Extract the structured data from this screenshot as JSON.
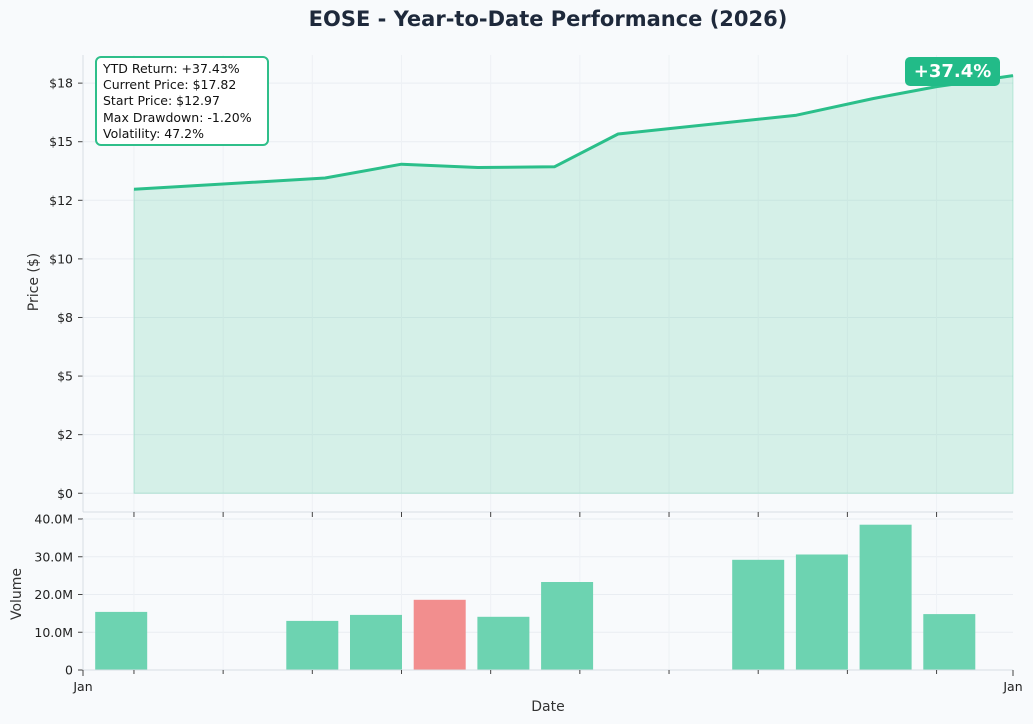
{
  "chart_data": [
    {
      "type": "area",
      "title": "EOSE - Year-to-Date Performance (2026)",
      "xlabel": "",
      "ylabel": "Price ($)",
      "y_ticks": [
        "$0",
        "$2",
        "$5",
        "$8",
        "$10",
        "$12",
        "$15",
        "$18"
      ],
      "ylim": [
        -0.8,
        18.7
      ],
      "y_tick_values": [
        0,
        2.5,
        5,
        7.5,
        10,
        12.5,
        15,
        17.5
      ],
      "grid": true,
      "series": [
        {
          "color": "#2bbf8a",
          "x": [
            "2026-01-05",
            "2026-01-20",
            "2026-01-26",
            "2026-02-01",
            "2026-02-07",
            "2026-02-12",
            "2026-02-26",
            "2026-03-04",
            "2026-03-09",
            "2026-03-15"
          ],
          "values": [
            12.97,
            13.45,
            14.04,
            13.9,
            13.93,
            15.33,
            16.13,
            16.84,
            17.35,
            17.82
          ]
        }
      ],
      "annotations": {
        "stats": [
          "YTD Return: +37.43%",
          "Current Price: $17.82",
          "Start Price: $12.97",
          "Max Drawdown: -1.20%",
          "Volatility: 47.2%"
        ],
        "badge": "+37.4%"
      }
    },
    {
      "type": "bar",
      "xlabel": "Date",
      "ylabel": "Volume",
      "x_tick_labels": [
        "Jan",
        "Jan"
      ],
      "y_ticks": [
        "0",
        "10.0M",
        "20.0M",
        "30.0M",
        "40.0M"
      ],
      "y_tick_values": [
        0,
        10000000,
        20000000,
        30000000,
        40000000
      ],
      "ylim": [
        0,
        40000000
      ],
      "grid": true,
      "up_color": "#6dd3b1",
      "down_color": "#f28e8e",
      "bars": [
        {
          "x": "2026-01-04",
          "value": 15400000,
          "direction": "up"
        },
        {
          "x": "2026-01-19",
          "value": 13000000,
          "direction": "up"
        },
        {
          "x": "2026-01-24",
          "value": 14600000,
          "direction": "up"
        },
        {
          "x": "2026-01-29",
          "value": 18600000,
          "direction": "down"
        },
        {
          "x": "2026-02-03",
          "value": 14100000,
          "direction": "up"
        },
        {
          "x": "2026-02-08",
          "value": 23300000,
          "direction": "up"
        },
        {
          "x": "2026-02-23",
          "value": 29200000,
          "direction": "up"
        },
        {
          "x": "2026-02-28",
          "value": 30600000,
          "direction": "up"
        },
        {
          "x": "2026-03-05",
          "value": 38500000,
          "direction": "up"
        },
        {
          "x": "2026-03-10",
          "value": 14800000,
          "direction": "up"
        }
      ]
    }
  ]
}
